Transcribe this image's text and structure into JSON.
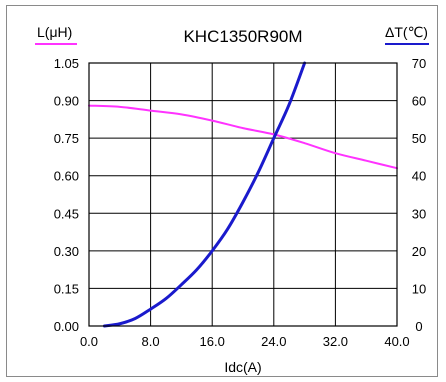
{
  "chart_data": {
    "type": "line",
    "title": "KHC1350R90M",
    "xlabel": "Idc(A)",
    "ylabel_left": "L(μH)",
    "ylabel_right": "ΔT(℃)",
    "xlim": [
      0,
      40
    ],
    "ylim_left": [
      0,
      1.05
    ],
    "ylim_right": [
      0,
      70
    ],
    "x_ticks": [
      "0.0",
      "8.0",
      "16.0",
      "24.0",
      "32.0",
      "40.0"
    ],
    "y_left_ticks": [
      "0.00",
      "0.15",
      "0.30",
      "0.45",
      "0.60",
      "0.75",
      "0.90",
      "1.05"
    ],
    "y_right_ticks": [
      "0",
      "10",
      "20",
      "30",
      "40",
      "50",
      "60",
      "70"
    ],
    "grid": true,
    "series": [
      {
        "name": "L(μH)",
        "axis": "left",
        "color": "#ff33ff",
        "x": [
          0,
          4,
          8,
          12,
          16,
          20,
          24,
          28,
          32,
          36,
          40
        ],
        "y": [
          0.88,
          0.875,
          0.86,
          0.845,
          0.82,
          0.79,
          0.765,
          0.73,
          0.69,
          0.66,
          0.63
        ]
      },
      {
        "name": "ΔT(℃)",
        "axis": "right",
        "color": "#1a1acc",
        "x": [
          2,
          4,
          6,
          8,
          10,
          12,
          14,
          16,
          18,
          20,
          22,
          24,
          26,
          28
        ],
        "y": [
          0,
          0.6,
          2,
          4.5,
          7.3,
          11,
          15,
          20,
          25.8,
          33,
          41,
          50,
          59,
          70
        ]
      }
    ]
  }
}
